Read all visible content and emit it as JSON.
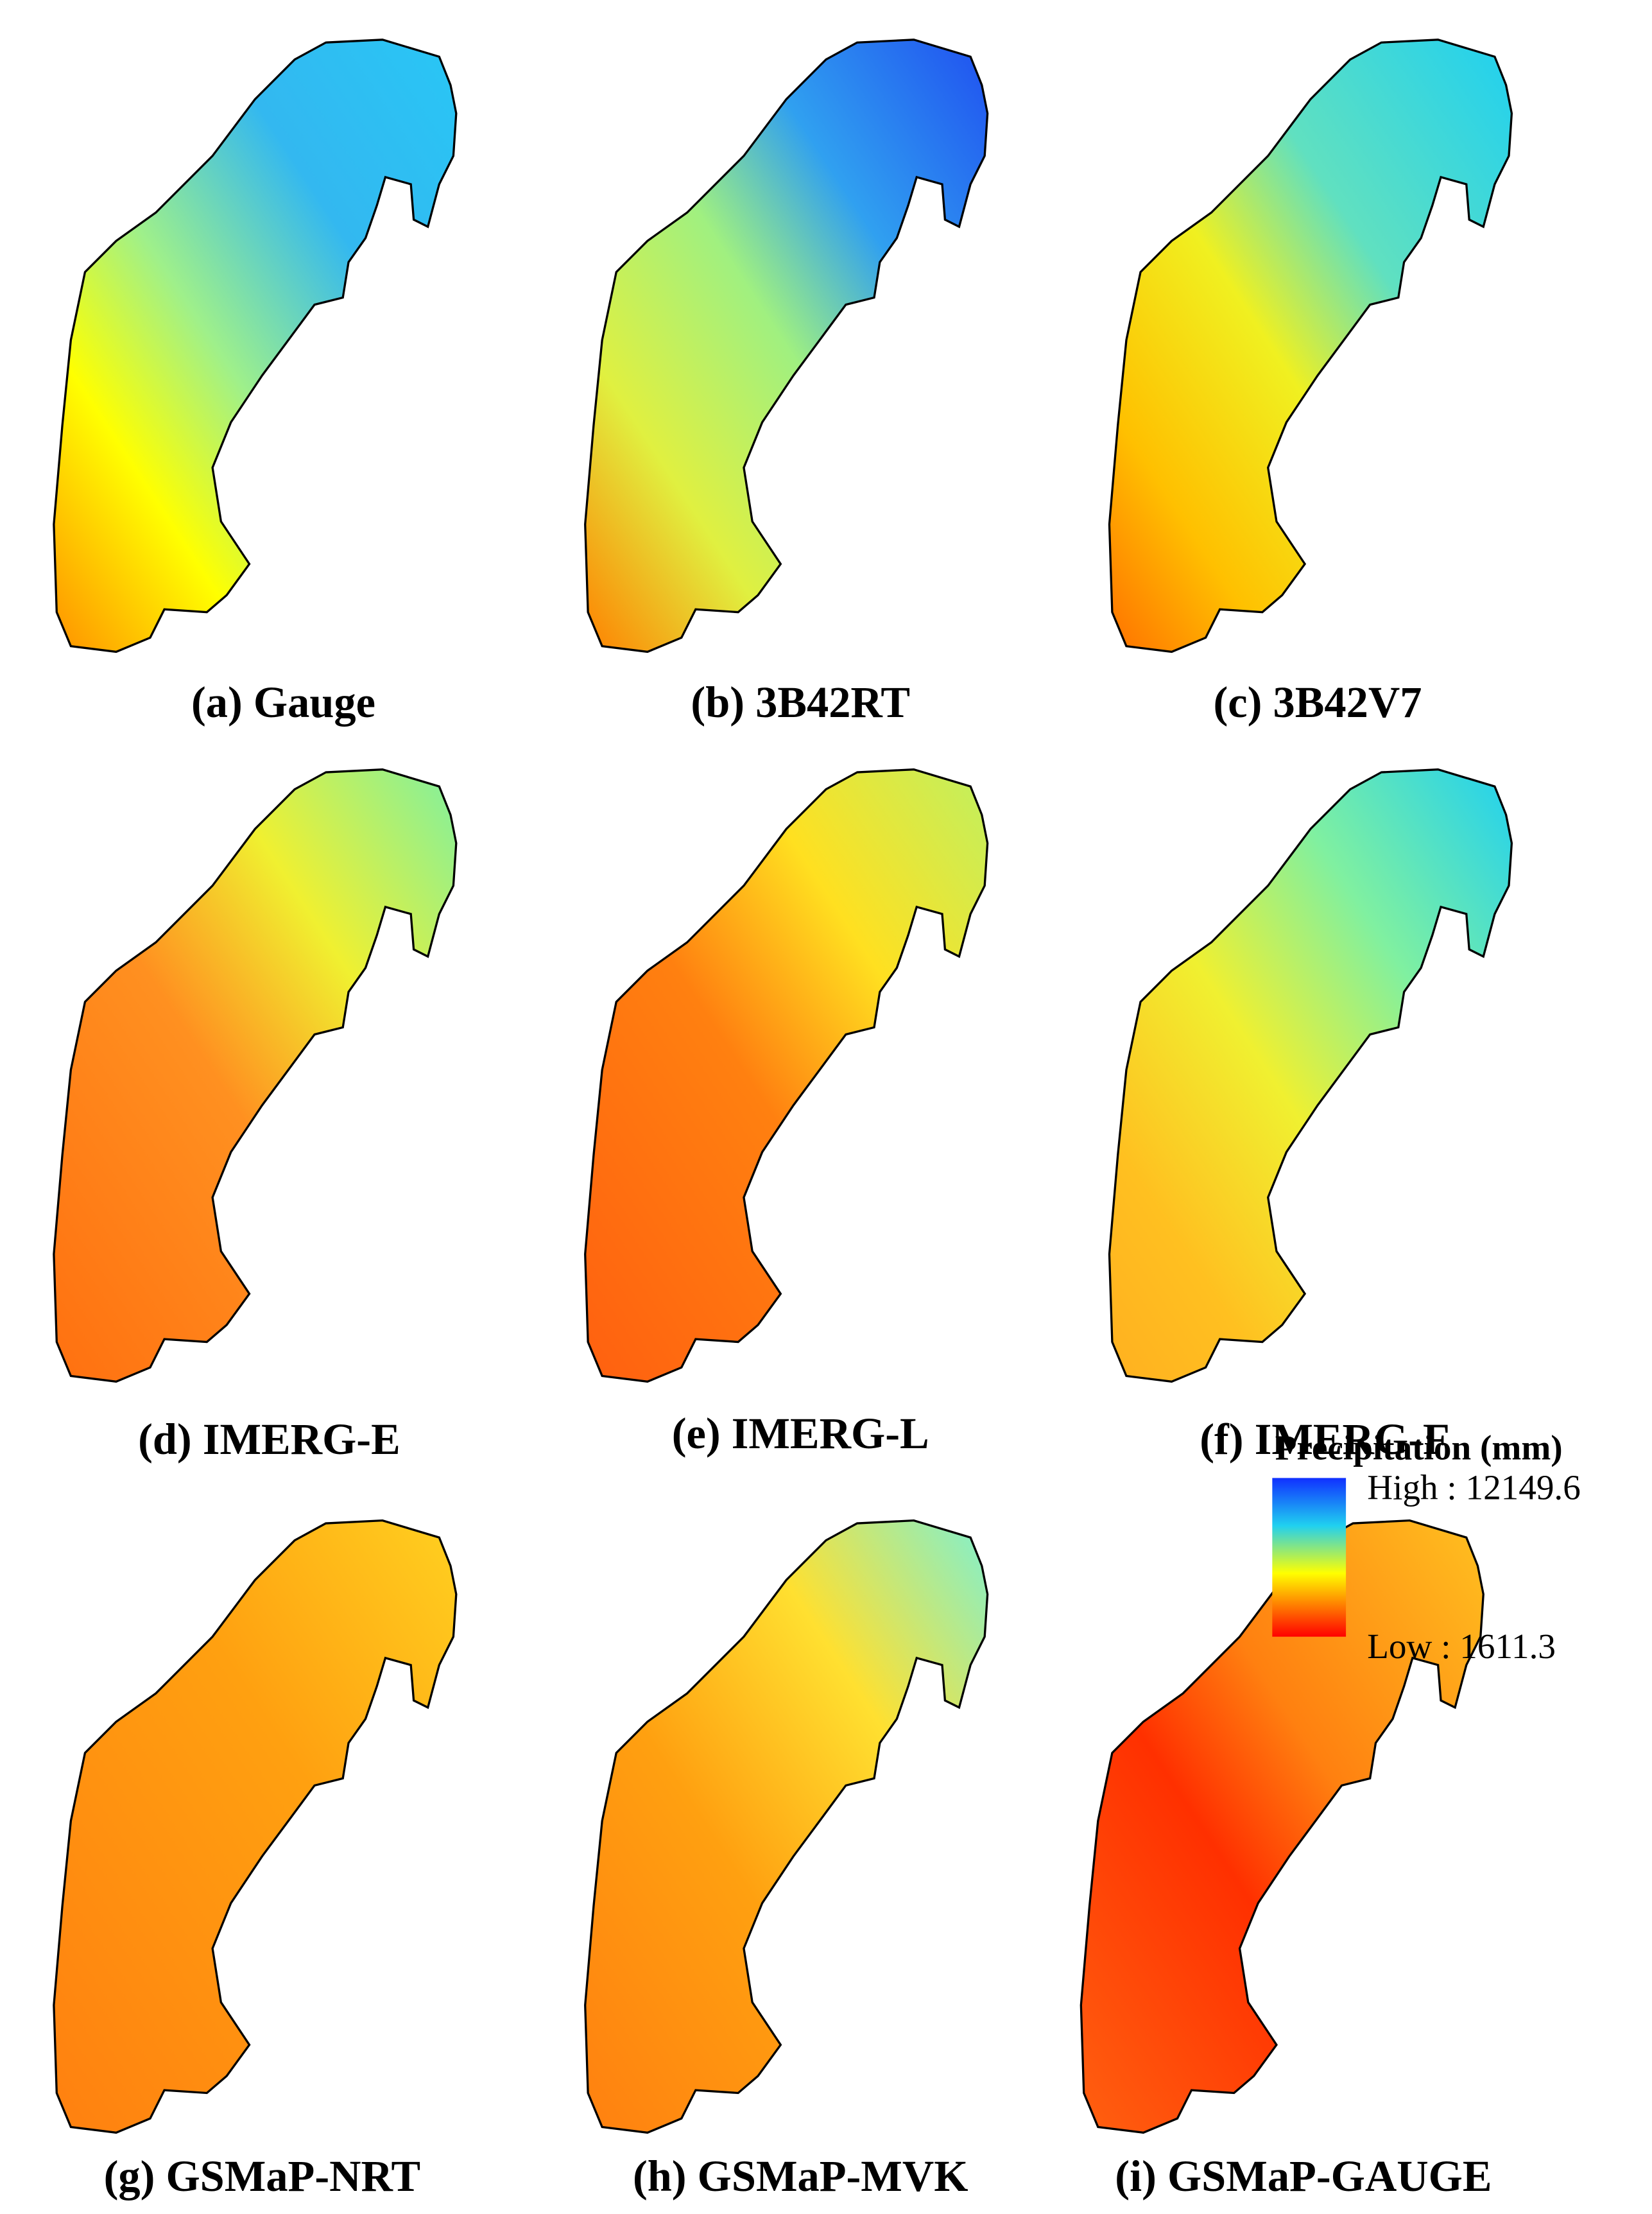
{
  "panels": [
    {
      "label": "(a) Gauge"
    },
    {
      "label": "(b) 3B42RT"
    },
    {
      "label": "(c) 3B42V7"
    },
    {
      "label": "(d) IMERG-E"
    },
    {
      "label": "(e) IMERG-L"
    },
    {
      "label": "(f) IMERG-F"
    },
    {
      "label": "(g) GSMaP-NRT"
    },
    {
      "label": "(h) GSMaP-MVK"
    },
    {
      "label": "(i) GSMaP-GAUGE"
    }
  ],
  "legend": {
    "title": "Precipitation (mm)",
    "high": "High : 12149.6",
    "low": "Low : 1611.3"
  }
}
